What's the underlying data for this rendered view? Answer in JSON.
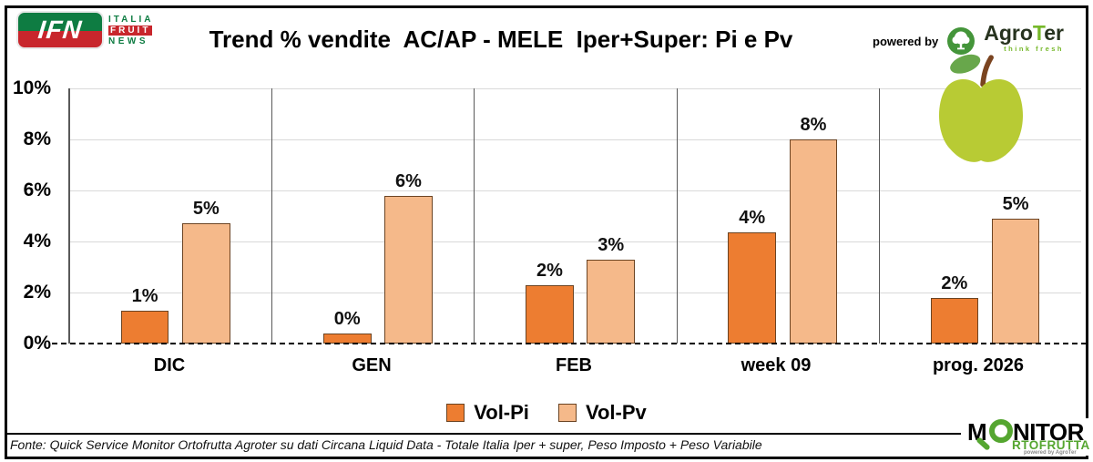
{
  "header": {
    "ifn": {
      "acronym": "IFN",
      "italia": "ITALIA",
      "fruit": "FRUIT",
      "news": "NEWS"
    },
    "title": "Trend % vendite  AC/AP - MELE  Iper+Super: Pi e Pv",
    "powered_by": "powered by",
    "agroter": {
      "part1": "Agro",
      "part2": "T",
      "part3": "er",
      "tagline": "think fresh"
    }
  },
  "chart_data": {
    "type": "bar",
    "title": "Trend % vendite  AC/AP - MELE  Iper+Super: Pi e Pv",
    "categories": [
      "DIC",
      "GEN",
      "FEB",
      "week 09",
      "prog. 2026"
    ],
    "series": [
      {
        "name": "Vol-Pi",
        "color": "#ed7d31",
        "border": "#6b4423",
        "values": [
          1.3,
          0.4,
          2.3,
          4.35,
          1.8
        ],
        "labels": [
          "1%",
          "0%",
          "2%",
          "4%",
          "2%"
        ]
      },
      {
        "name": "Vol-Pv",
        "color": "#f5b98a",
        "border": "#6b4423",
        "values": [
          4.7,
          5.8,
          3.3,
          8.0,
          4.9
        ],
        "labels": [
          "5%",
          "6%",
          "3%",
          "8%",
          "5%"
        ]
      }
    ],
    "ylim": [
      0,
      10
    ],
    "yticks": [
      {
        "value": 0,
        "label": "0%"
      },
      {
        "value": 2,
        "label": "2%"
      },
      {
        "value": 4,
        "label": "4%"
      },
      {
        "value": 6,
        "label": "6%"
      },
      {
        "value": 8,
        "label": "8%"
      },
      {
        "value": 10,
        "label": "10%"
      }
    ],
    "grid": "horizontal",
    "legend_position": "bottom",
    "zero_line": "dashed",
    "bar_layout": {
      "series_left_pct": [
        25.2,
        55.6
      ],
      "bar_width_pct": 23.8
    }
  },
  "footer": {
    "source": "Fonte: Quick Service Monitor Ortofrutta Agroter su dati Circana Liquid Data - Totale Italia Iper + super, Peso Imposto + Peso Variabile"
  },
  "monitor": {
    "line1_prefix": "M",
    "line1_suffix": "NITOR",
    "line2": "RTOFRUTTA",
    "powered": "powered by AgroTer"
  },
  "colors": {
    "vol_pi": "#ed7d31",
    "vol_pv": "#f5b98a",
    "bar_border": "#6b4423",
    "gridline": "#d9d9d9",
    "axis": "#595959",
    "agroter_green": "#76b82a",
    "monitor_green": "#55a630",
    "ifn_green": "#0e7c42",
    "ifn_red": "#c8262c",
    "apple_body": "#b8cb34",
    "apple_leaf": "#68a74b",
    "apple_stem": "#7a4420"
  }
}
